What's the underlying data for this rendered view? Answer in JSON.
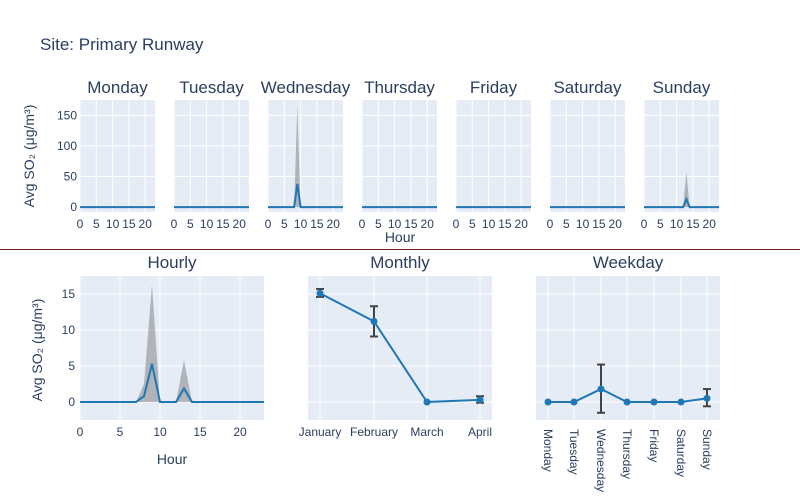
{
  "title": "Site: Primary Runway",
  "colors": {
    "line": "#1f77b4",
    "band": "#9a9ca0",
    "bg": "#e5ecf6",
    "divider": "#7b1e22",
    "errorbar": "#444444"
  },
  "chart_data": [
    {
      "type": "area",
      "name": "daily-facets",
      "ylabel": "Avg SO₂ (μg/m³)",
      "xlabel": "Hour",
      "xlim": [
        0,
        23
      ],
      "ylim": [
        -8,
        175
      ],
      "xticks": [
        0,
        5,
        10,
        15,
        20
      ],
      "yticks": [
        0,
        50,
        100,
        150
      ],
      "panels": [
        {
          "title": "Monday",
          "peaks": []
        },
        {
          "title": "Tuesday",
          "peaks": []
        },
        {
          "title": "Wednesday",
          "peaks": [
            {
              "hour": 9,
              "value": 38,
              "upper": 165
            }
          ]
        },
        {
          "title": "Thursday",
          "peaks": []
        },
        {
          "title": "Friday",
          "peaks": []
        },
        {
          "title": "Saturday",
          "peaks": []
        },
        {
          "title": "Sunday",
          "peaks": [
            {
              "hour": 13,
              "value": 13,
              "upper": 58
            }
          ]
        }
      ]
    },
    {
      "type": "area",
      "name": "hourly",
      "title": "Hourly",
      "xlabel": "Hour",
      "ylabel": "Avg SO₂ (μg/m³)",
      "xlim": [
        0,
        23
      ],
      "ylim": [
        -2.5,
        17.5
      ],
      "xticks": [
        0,
        5,
        10,
        15,
        20
      ],
      "yticks": [
        0,
        5,
        10,
        15
      ],
      "x": [
        0,
        1,
        2,
        3,
        4,
        5,
        6,
        7,
        8,
        9,
        10,
        11,
        12,
        13,
        14,
        15,
        16,
        17,
        18,
        19,
        20,
        21,
        22,
        23
      ],
      "values": [
        0,
        0,
        0,
        0,
        0,
        0,
        0,
        0,
        0.8,
        5.3,
        0,
        0,
        0,
        1.9,
        0,
        0,
        0,
        0,
        0,
        0,
        0,
        0,
        0,
        0
      ],
      "upper": [
        0,
        0,
        0,
        0,
        0,
        0,
        0,
        0,
        2.5,
        16.3,
        0,
        0,
        0,
        5.8,
        0,
        0,
        0,
        0,
        0,
        0,
        0,
        0,
        0,
        0
      ]
    },
    {
      "type": "line",
      "name": "monthly",
      "title": "Monthly",
      "categories": [
        "January",
        "February",
        "March",
        "April"
      ],
      "values": [
        15.1,
        11.2,
        0,
        0.3
      ],
      "err_low": [
        14.6,
        9.1,
        0,
        -0.1
      ],
      "err_high": [
        15.7,
        13.3,
        0,
        0.8
      ],
      "ylim": [
        -2.5,
        17.5
      ]
    },
    {
      "type": "line",
      "name": "weekday",
      "title": "Weekday",
      "categories": [
        "Monday",
        "Tuesday",
        "Wednesday",
        "Thursday",
        "Friday",
        "Saturday",
        "Sunday"
      ],
      "values": [
        0,
        0,
        1.8,
        0,
        0,
        0,
        0.5
      ],
      "err_low": [
        0,
        0,
        -1.5,
        0,
        0,
        0,
        -0.6
      ],
      "err_high": [
        0,
        0,
        5.2,
        0,
        0,
        0,
        1.8
      ],
      "ylim": [
        -2.5,
        17.5
      ]
    }
  ]
}
